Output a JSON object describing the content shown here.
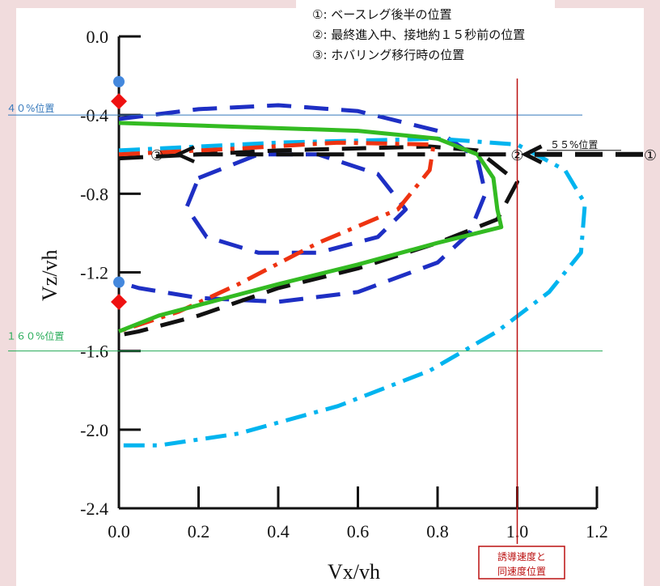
{
  "chart_data": {
    "type": "line",
    "title": "",
    "xlabel": "Vx/vh",
    "ylabel": "Vz/vh",
    "xlim": [
      0.0,
      1.2
    ],
    "ylim": [
      -2.4,
      0.0
    ],
    "x_ticks": [
      "0.0",
      "0.2",
      "0.4",
      "0.6",
      "0.8",
      "1.0",
      "1.2"
    ],
    "y_ticks": [
      "0.0",
      "-0.4",
      "-0.8",
      "-1.2",
      "-1.6",
      "-2.0",
      "-2.4"
    ],
    "grid": false,
    "series": [
      {
        "color": "#1e2fc4",
        "style": "dash",
        "points": [
          [
            0.0,
            -0.42
          ],
          [
            0.2,
            -0.37
          ],
          [
            0.4,
            -0.35
          ],
          [
            0.6,
            -0.38
          ],
          [
            0.8,
            -0.48
          ],
          [
            0.9,
            -0.62
          ],
          [
            0.92,
            -0.8
          ],
          [
            0.88,
            -1.0
          ],
          [
            0.8,
            -1.15
          ],
          [
            0.6,
            -1.3
          ],
          [
            0.4,
            -1.35
          ],
          [
            0.2,
            -1.33
          ],
          [
            0.05,
            -1.28
          ],
          [
            0.0,
            -1.25
          ]
        ]
      },
      {
        "color": "#1e2fc4",
        "style": "dash",
        "points": [
          [
            0.2,
            -0.72
          ],
          [
            0.35,
            -0.6
          ],
          [
            0.5,
            -0.6
          ],
          [
            0.65,
            -0.7
          ],
          [
            0.72,
            -0.88
          ],
          [
            0.65,
            -1.02
          ],
          [
            0.5,
            -1.1
          ],
          [
            0.35,
            -1.1
          ],
          [
            0.22,
            -1.02
          ],
          [
            0.17,
            -0.87
          ],
          [
            0.2,
            -0.72
          ]
        ]
      },
      {
        "color": "#00b4ef",
        "style": "dash-dot",
        "points": [
          [
            0.0,
            -0.58
          ],
          [
            0.4,
            -0.54
          ],
          [
            0.8,
            -0.52
          ],
          [
            1.0,
            -0.55
          ],
          [
            1.12,
            -0.68
          ],
          [
            1.17,
            -0.85
          ],
          [
            1.16,
            -1.1
          ],
          [
            1.08,
            -1.3
          ],
          [
            0.95,
            -1.5
          ],
          [
            0.78,
            -1.7
          ],
          [
            0.55,
            -1.88
          ],
          [
            0.3,
            -2.02
          ],
          [
            0.1,
            -2.08
          ],
          [
            0.0,
            -2.08
          ]
        ]
      },
      {
        "color": "#111111",
        "style": "dash",
        "points": [
          [
            0.0,
            -0.62
          ],
          [
            0.4,
            -0.58
          ],
          [
            0.78,
            -0.56
          ],
          [
            0.9,
            -0.58
          ],
          [
            1.0,
            -0.74
          ],
          [
            0.95,
            -0.93
          ],
          [
            0.8,
            -1.05
          ],
          [
            0.6,
            -1.18
          ],
          [
            0.4,
            -1.28
          ],
          [
            0.2,
            -1.42
          ],
          [
            0.05,
            -1.5
          ],
          [
            0.0,
            -1.52
          ]
        ]
      },
      {
        "color": "#ee3311",
        "style": "dash-dot",
        "points": [
          [
            0.0,
            -0.6
          ],
          [
            0.3,
            -0.57
          ],
          [
            0.55,
            -0.54
          ],
          [
            0.79,
            -0.55
          ],
          [
            0.78,
            -0.68
          ],
          [
            0.7,
            -0.88
          ],
          [
            0.5,
            -1.05
          ],
          [
            0.3,
            -1.26
          ],
          [
            0.15,
            -1.4
          ],
          [
            0.0,
            -1.5
          ]
        ]
      },
      {
        "color": "#33bb22",
        "style": "solid",
        "points": [
          [
            0.0,
            -0.44
          ],
          [
            0.3,
            -0.46
          ],
          [
            0.6,
            -0.48
          ],
          [
            0.8,
            -0.52
          ],
          [
            0.9,
            -0.6
          ],
          [
            0.94,
            -0.72
          ],
          [
            0.95,
            -0.88
          ],
          [
            0.96,
            -0.97
          ],
          [
            0.8,
            -1.05
          ],
          [
            0.6,
            -1.16
          ],
          [
            0.4,
            -1.26
          ],
          [
            0.25,
            -1.34
          ],
          [
            0.1,
            -1.42
          ],
          [
            0.0,
            -1.5
          ]
        ]
      }
    ],
    "markers": [
      {
        "shape": "circle",
        "color": "#4488dd",
        "x": 0.0,
        "y": -0.23
      },
      {
        "shape": "diamond",
        "color": "#ee1111",
        "x": 0.0,
        "y": -0.33
      },
      {
        "shape": "circle",
        "color": "#4488dd",
        "x": 0.0,
        "y": -1.25
      },
      {
        "shape": "diamond",
        "color": "#ee1111",
        "x": 0.0,
        "y": -1.35
      }
    ],
    "annotations": {
      "h40": {
        "label": "４０%位置",
        "y": -0.4,
        "color": "#3377bb"
      },
      "h160": {
        "label": "１６０%位置",
        "y": -1.6,
        "color": "#22aa55"
      },
      "v_ref": {
        "label_line1": "誘導速度と",
        "label_line2": "同速度位置",
        "x": 1.0,
        "color": "#bb1111"
      },
      "p55": {
        "label": "５５%位置",
        "y": -0.6
      },
      "arrow_pos1": {
        "marker": "①",
        "marker_y": -0.6
      },
      "arrow_pos2": {
        "marker": "②",
        "x": 1.0,
        "y": -0.6
      },
      "arrow_pos3": {
        "marker": "③",
        "x": 0.12,
        "y": -0.6
      }
    },
    "legend": [
      "①: ベースレグ後半の位置",
      "②: 最終進入中、接地約１５秒前の位置",
      "③: ホバリング移行時の位置"
    ]
  }
}
